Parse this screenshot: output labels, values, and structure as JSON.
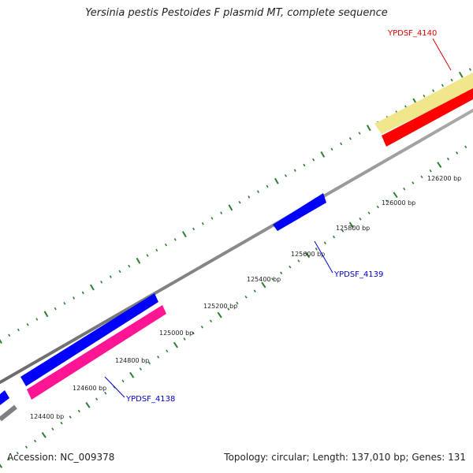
{
  "title": "Yersinia pestis Pestoides F plasmid MT, complete sequence",
  "footer": {
    "accession": "Accession: NC_009378",
    "topology": "Topology: circular; Length: 137,010 bp; Genes: 131"
  },
  "ticks": [
    "124400 bp",
    "124600 bp",
    "124800 bp",
    "125000 bp",
    "125200 bp",
    "125400 bp",
    "125600 bp",
    "125800 bp",
    "126000 bp",
    "126200 bp"
  ],
  "genes": {
    "ypdsf_4138": "YPDSF_4138",
    "ypdsf_4139": "YPDSF_4139",
    "ypdsf_4140": "YPDSF_4140"
  },
  "colors": {
    "backbone": "#808080",
    "forward_cds": "#0000ff",
    "reverse_cds": "#ff1493",
    "red_cds": "#ff0000",
    "pale_yellow_cds": "#f0e68c",
    "tick": "#2e7d32",
    "label_blue": "#0000cc",
    "label_red": "#dd0000"
  }
}
